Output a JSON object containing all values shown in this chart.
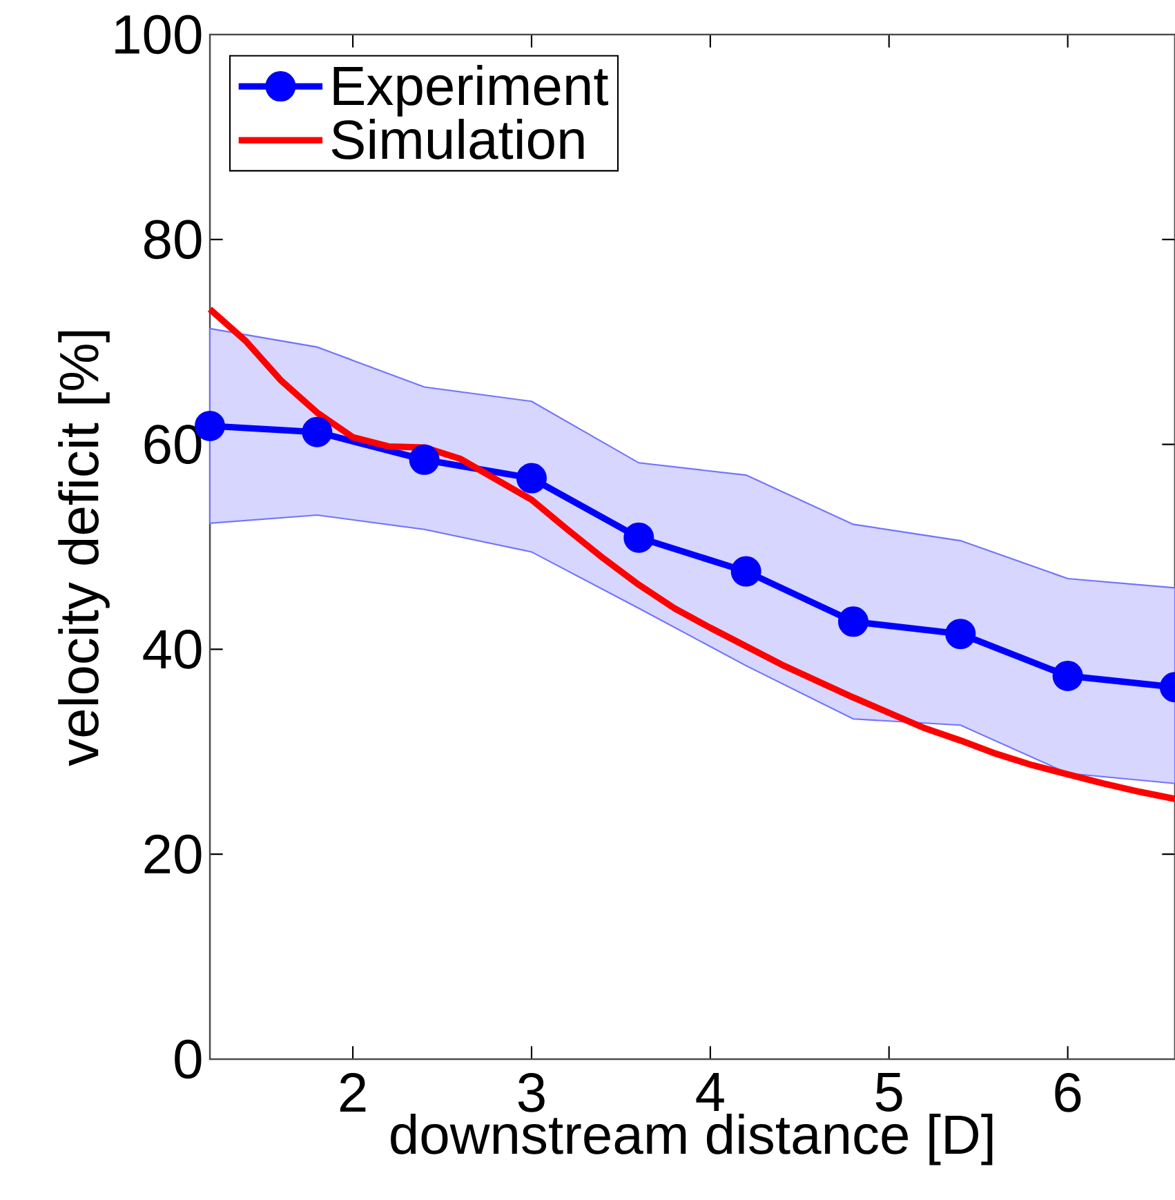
{
  "chart_data": {
    "type": "line",
    "xlabel": "downstream distance [D]",
    "ylabel": "velocity deficit [%]",
    "xlim": [
      1.2,
      6.6
    ],
    "ylim": [
      0,
      100
    ],
    "xticks": [
      2,
      3,
      4,
      5,
      6
    ],
    "yticks": [
      0,
      20,
      40,
      60,
      80,
      100
    ],
    "legend": "top left",
    "grid": false,
    "series": [
      {
        "name": "Experiment",
        "color": "#0000ff",
        "marker": "circle",
        "x": [
          1.2,
          1.8,
          2.4,
          3.0,
          3.6,
          4.2,
          4.8,
          5.4,
          6.0,
          6.6
        ],
        "values": [
          61.8,
          61.2,
          58.5,
          56.7,
          50.9,
          47.6,
          42.7,
          41.5,
          37.4,
          36.3
        ],
        "lower": [
          52.3,
          53.1,
          51.7,
          49.5,
          44.0,
          38.4,
          33.2,
          32.6,
          27.9,
          26.9
        ],
        "upper": [
          71.3,
          69.5,
          65.6,
          64.2,
          58.2,
          57.0,
          52.2,
          50.6,
          46.9,
          46.0
        ]
      },
      {
        "name": "Simulation",
        "color": "#ff0000",
        "marker": "none",
        "x": [
          1.2,
          1.4,
          1.6,
          1.8,
          2.0,
          2.2,
          2.4,
          2.6,
          2.8,
          3.0,
          3.2,
          3.4,
          3.6,
          3.8,
          4.0,
          4.2,
          4.4,
          4.6,
          4.8,
          5.0,
          5.2,
          5.4,
          5.6,
          5.8,
          6.0,
          6.2,
          6.4,
          6.6
        ],
        "values": [
          73.2,
          70.1,
          66.2,
          63.1,
          60.7,
          59.8,
          59.7,
          58.6,
          56.6,
          54.6,
          51.7,
          48.9,
          46.3,
          44.0,
          42.1,
          40.3,
          38.5,
          36.9,
          35.3,
          33.8,
          32.3,
          31.1,
          29.8,
          28.7,
          27.8,
          26.9,
          26.1,
          25.4
        ]
      }
    ]
  }
}
